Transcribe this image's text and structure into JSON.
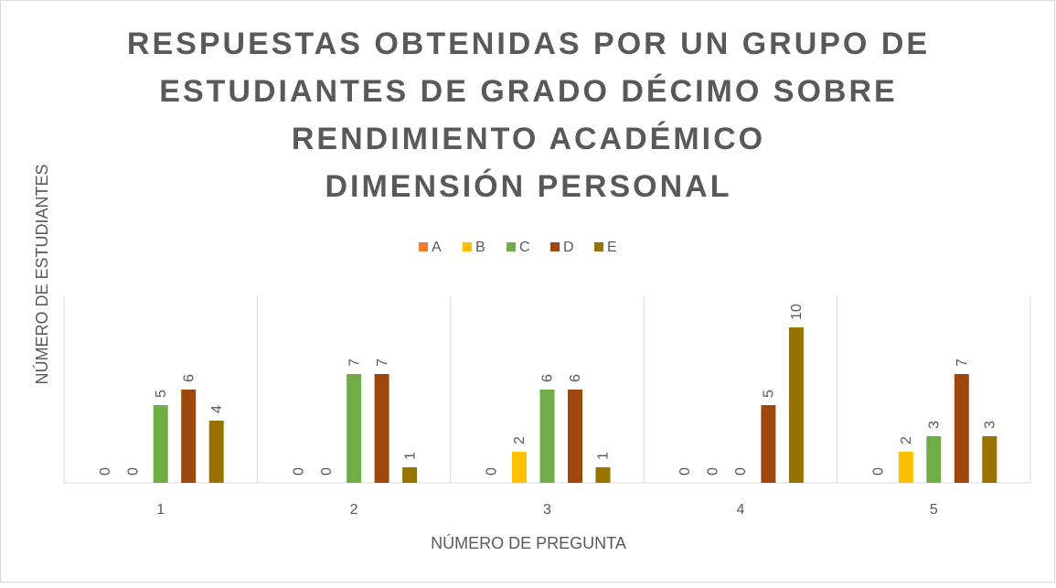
{
  "chart_data": {
    "type": "bar",
    "title": [
      "RESPUESTAS OBTENIDAS POR UN GRUPO DE",
      "ESTUDIANTES DE GRADO DÉCIMO SOBRE",
      "RENDIMIENTO ACADÉMICO",
      "DIMENSIÓN PERSONAL"
    ],
    "x_label": "NÚMERO DE PREGUNTA",
    "y_label": "NÚMERO DE ESTUDIANTES",
    "categories": [
      "1",
      "2",
      "3",
      "4",
      "5"
    ],
    "series": [
      {
        "name": "A",
        "color": "#ed7d31",
        "values": [
          0,
          0,
          0,
          0,
          0
        ]
      },
      {
        "name": "B",
        "color": "#ffc000",
        "values": [
          0,
          0,
          2,
          0,
          2
        ]
      },
      {
        "name": "C",
        "color": "#70ad47",
        "values": [
          5,
          7,
          6,
          0,
          3
        ]
      },
      {
        "name": "D",
        "color": "#9e480e",
        "values": [
          6,
          7,
          6,
          5,
          7
        ]
      },
      {
        "name": "E",
        "color": "#997300",
        "values": [
          4,
          1,
          1,
          10,
          3
        ]
      }
    ],
    "ylim": [
      0,
      12
    ],
    "legend": "top",
    "data_labels": true
  }
}
